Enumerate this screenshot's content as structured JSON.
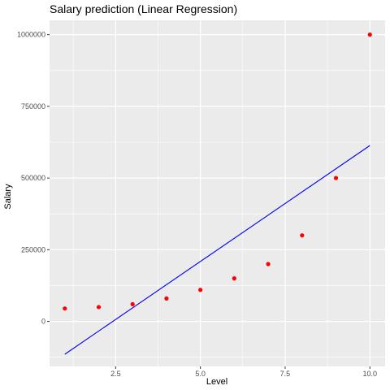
{
  "chart_data": {
    "type": "scatter",
    "title": "Salary prediction (Linear Regression)",
    "xlabel": "Level",
    "ylabel": "Salary",
    "xlim": [
      0.55,
      10.45
    ],
    "ylim": [
      -157000,
      1050000
    ],
    "x_ticks": [
      2.5,
      5.0,
      7.5,
      10.0
    ],
    "x_tick_labels": [
      "2.5",
      "5.0",
      "7.5",
      "10.0"
    ],
    "y_ticks": [
      0,
      250000,
      500000,
      750000,
      1000000
    ],
    "y_tick_labels": [
      "0",
      "250000",
      "500000",
      "750000",
      "1000000"
    ],
    "grid": true,
    "points": {
      "color": "#ff0000",
      "x": [
        1,
        2,
        3,
        4,
        5,
        6,
        7,
        8,
        9,
        10
      ],
      "y": [
        45000,
        50000,
        60000,
        80000,
        110000,
        150000,
        200000,
        300000,
        500000,
        1000000
      ]
    },
    "fit_line": {
      "color": "#0000ff",
      "x": [
        1,
        10
      ],
      "y": [
        -114454,
        613333
      ]
    },
    "panel_color": "#ebebeb",
    "grid_color": "#ffffff"
  }
}
